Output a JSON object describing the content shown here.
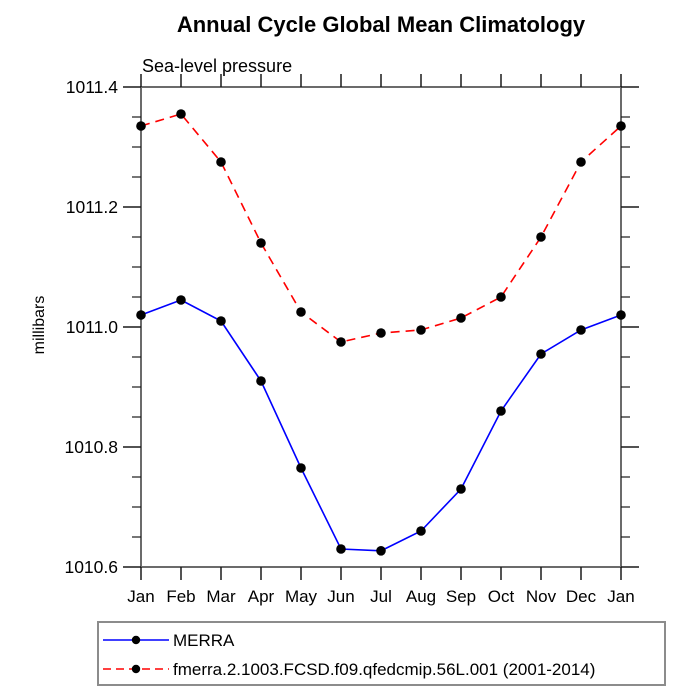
{
  "chart_data": {
    "type": "line",
    "title": "Annual Cycle Global Mean Climatology",
    "subtitle": "Sea-level pressure",
    "xlabel": "",
    "ylabel": "millibars",
    "categories": [
      "Jan",
      "Feb",
      "Mar",
      "Apr",
      "May",
      "Jun",
      "Jul",
      "Aug",
      "Sep",
      "Oct",
      "Nov",
      "Dec",
      "Jan"
    ],
    "ylim": [
      1010.6,
      1011.4
    ],
    "y_major_step": 0.2,
    "y_minor_step": 0.05,
    "y_tick_labels": [
      "1010.6",
      "1010.8",
      "1011.0",
      "1011.2",
      "1011.4"
    ],
    "grid": false,
    "legend_position": "bottom-left",
    "series": [
      {
        "name": "MERRA",
        "color": "#0000ff",
        "line_style": "solid",
        "marker": "circle",
        "marker_color": "#000000",
        "values": [
          1011.02,
          1011.045,
          1011.01,
          1010.91,
          1010.765,
          1010.63,
          1010.627,
          1010.66,
          1010.73,
          1010.86,
          1010.955,
          1010.995,
          1011.02
        ]
      },
      {
        "name": "fmerra.2.1003.FCSD.f09.qfedcmip.56L.001 (2001-2014)",
        "color": "#ff0000",
        "line_style": "dashed",
        "marker": "circle",
        "marker_color": "#000000",
        "values": [
          1011.335,
          1011.355,
          1011.275,
          1011.14,
          1011.025,
          1010.975,
          1010.99,
          1010.995,
          1011.015,
          1011.05,
          1011.15,
          1011.275,
          1011.335
        ]
      }
    ]
  },
  "colors": {
    "background": "#ffffff",
    "axis_frame": "#6b6b6b",
    "tick": "#1a1a1a",
    "text": "#000000",
    "legend_border": "#8c8c8c"
  }
}
